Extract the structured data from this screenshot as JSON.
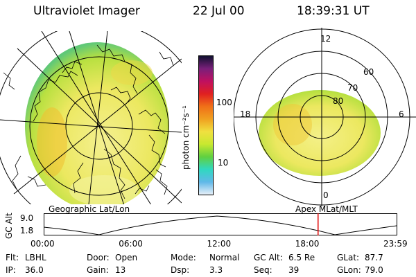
{
  "header": {
    "instrument": "Ultraviolet Imager",
    "date": "22 Jul 00",
    "time": "18:39:31 UT"
  },
  "colorbar": {
    "unit_label": "photon cm⁻²s⁻¹",
    "ticks": [
      "100",
      "10"
    ],
    "colors": [
      "#101030",
      "#7a1f7a",
      "#c01060",
      "#e02020",
      "#f07018",
      "#f0a020",
      "#f0e040",
      "#c8e830",
      "#60d040",
      "#30d8c0",
      "#60b8e8",
      "#e8f0f8"
    ]
  },
  "left_panel": {
    "label": "Geographic Lat/Lon",
    "image_colors": [
      "#e8e860",
      "#f0c838",
      "#b8e040",
      "#f0f080",
      "#60c878"
    ]
  },
  "right_panel": {
    "label": "Apex MLat/MLT",
    "mlt_labels": {
      "top": "12",
      "left": "18",
      "right": "6",
      "bottom": "0"
    },
    "mlat_labels": [
      "80",
      "70",
      "60"
    ]
  },
  "altitude_strip": {
    "axis_label": "GC Alt",
    "y_ticks": [
      "9.0",
      "1.8"
    ],
    "time_ticks": [
      "00:00",
      "06:00",
      "12:00",
      "18:00",
      "23:59"
    ],
    "marker_time_hours": 18.66,
    "marker_color": "#e00000"
  },
  "info": {
    "row1": [
      {
        "key": "Flt:",
        "value": "LBHL"
      },
      {
        "key": "Door:",
        "value": "Open"
      },
      {
        "key": "Mode:",
        "value": "Normal"
      },
      {
        "key": "GC Alt:",
        "value": "6.5 Re"
      },
      {
        "key": "GLat:",
        "value": "87.7"
      }
    ],
    "row2": [
      {
        "key": "IP:",
        "value": "36.0"
      },
      {
        "key": "Gain:",
        "value": "13"
      },
      {
        "key": "Dsp:",
        "value": "3.3"
      },
      {
        "key": "Seq:",
        "value": "39"
      },
      {
        "key": "GLon:",
        "value": "79.0"
      }
    ]
  }
}
